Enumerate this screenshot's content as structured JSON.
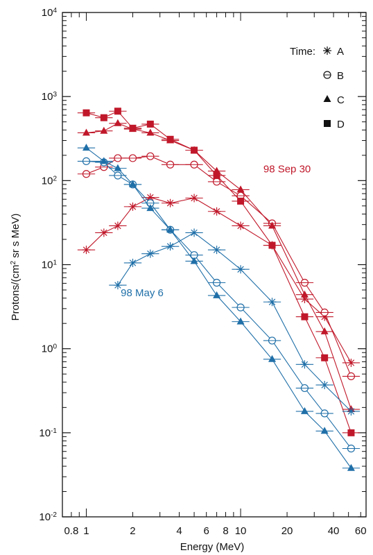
{
  "chart_data": {
    "type": "line",
    "xlabel": "Energy (MeV)",
    "ylabel_main": "Protons/(cm",
    "ylabel_sup": "2",
    "ylabel_rest": " sr s MeV)",
    "xscale": "log",
    "yscale": "log",
    "xlim": [
      0.7,
      65
    ],
    "ylim": [
      0.01,
      10000
    ],
    "xticks": [
      {
        "v": 0.8,
        "label": "0.8"
      },
      {
        "v": 1,
        "label": "1"
      },
      {
        "v": 2,
        "label": "2"
      },
      {
        "v": 4,
        "label": "4"
      },
      {
        "v": 6,
        "label": "6"
      },
      {
        "v": 8,
        "label": "8"
      },
      {
        "v": 10,
        "label": "10"
      },
      {
        "v": 20,
        "label": "20"
      },
      {
        "v": 40,
        "label": "40"
      },
      {
        "v": 60,
        "label": "60"
      }
    ],
    "yticks": [
      {
        "v": 0.01,
        "base": "10",
        "exp": "-2"
      },
      {
        "v": 0.1,
        "base": "10",
        "exp": "-1"
      },
      {
        "v": 1,
        "base": "10",
        "exp": "0"
      },
      {
        "v": 10,
        "base": "10",
        "exp": "1"
      },
      {
        "v": 100,
        "base": "10",
        "exp": "2"
      },
      {
        "v": 1000,
        "base": "10",
        "exp": "3"
      },
      {
        "v": 10000,
        "base": "10",
        "exp": "4"
      }
    ],
    "legend_title": "Time:",
    "legend": [
      {
        "marker": "asterisk",
        "label": "A"
      },
      {
        "marker": "circle",
        "label": "B"
      },
      {
        "marker": "triangle",
        "label": "C"
      },
      {
        "marker": "square",
        "label": "D"
      }
    ],
    "annotations": [
      {
        "text": "98 Sep 30",
        "x": 20,
        "y": 125,
        "color": "#c0182a"
      },
      {
        "text": "98 May 6",
        "x": 2.3,
        "y": 4.2,
        "color": "#1f6fa8"
      }
    ],
    "colors": {
      "event1": "#1f6fa8",
      "event2": "#c0182a"
    },
    "series": [
      {
        "event": "event2",
        "marker": "asterisk",
        "x": [
          1,
          1.3,
          1.6,
          2,
          2.6,
          3.5,
          5,
          7,
          10,
          16,
          26,
          35,
          52
        ],
        "y": [
          15,
          24,
          29,
          49,
          63,
          54,
          62,
          43,
          29,
          17,
          3.9,
          2.4,
          0.68
        ]
      },
      {
        "event": "event2",
        "marker": "circle",
        "x": [
          1,
          1.3,
          1.6,
          2,
          2.6,
          3.5,
          5,
          7,
          10,
          16,
          26,
          35,
          52
        ],
        "y": [
          120,
          145,
          185,
          185,
          195,
          155,
          155,
          97,
          66,
          31,
          6.1,
          2.7,
          0.47
        ]
      },
      {
        "event": "event2",
        "marker": "triangle",
        "x": [
          1,
          1.3,
          1.6,
          2,
          2.6,
          3.5,
          5,
          7,
          10,
          16,
          26,
          35,
          52
        ],
        "y": [
          370,
          390,
          480,
          410,
          370,
          300,
          230,
          130,
          78,
          29,
          4.4,
          1.6,
          0.19
        ]
      },
      {
        "event": "event2",
        "marker": "square",
        "x": [
          1,
          1.3,
          1.6,
          2,
          2.6,
          3.5,
          5,
          7,
          10,
          16,
          26,
          35,
          52
        ],
        "y": [
          640,
          560,
          670,
          420,
          470,
          310,
          230,
          115,
          57,
          17,
          2.4,
          0.78,
          0.1
        ]
      },
      {
        "event": "event1",
        "marker": "asterisk",
        "x": [
          1.6,
          2,
          2.6,
          3.5,
          5,
          7,
          10,
          16,
          26,
          35,
          52
        ],
        "y": [
          5.7,
          10.5,
          13.5,
          16.5,
          24,
          15,
          8.8,
          3.6,
          0.65,
          0.37,
          0.18
        ]
      },
      {
        "event": "event1",
        "marker": "circle",
        "x": [
          1,
          1.3,
          1.6,
          2,
          2.6,
          3.5,
          5,
          7,
          10,
          16,
          26,
          35,
          52
        ],
        "y": [
          170,
          165,
          115,
          90,
          54,
          26,
          13,
          6.1,
          3.1,
          1.25,
          0.34,
          0.17,
          0.065
        ]
      },
      {
        "event": "event1",
        "marker": "triangle",
        "x": [
          1,
          1.3,
          1.6,
          2,
          2.6,
          3.5,
          5,
          7,
          10,
          16,
          26,
          35,
          52
        ],
        "y": [
          245,
          170,
          140,
          90,
          47,
          26,
          11,
          4.3,
          2.1,
          0.75,
          0.18,
          0.105,
          0.038
        ]
      }
    ]
  }
}
